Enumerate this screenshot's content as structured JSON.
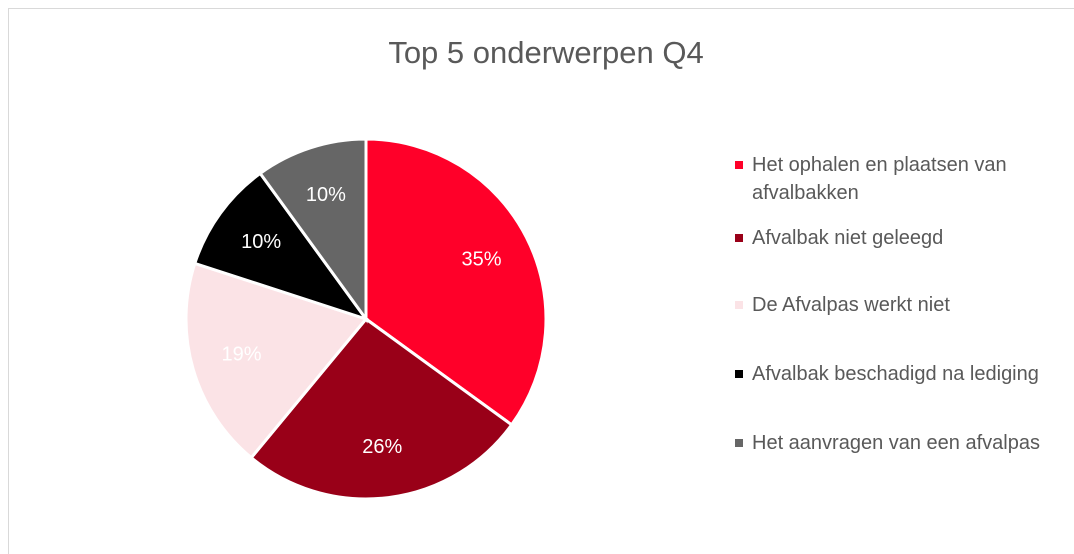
{
  "chart_data": {
    "type": "pie",
    "title": "Top 5 onderwerpen Q4",
    "categories": [
      "Het ophalen en plaatsen van afvalbakken",
      "Afvalbak niet geleegd",
      "De Afvalpas werkt niet",
      "Afvalbak beschadigd na lediging",
      "Het aanvragen van een afvalpas"
    ],
    "values": [
      35,
      26,
      19,
      10,
      10
    ],
    "value_labels": [
      "35%",
      "26%",
      "19%",
      "10%",
      "10%"
    ],
    "colors": [
      "#ff0029",
      "#990018",
      "#fbe3e6",
      "#000000",
      "#666666"
    ],
    "legend": "right"
  }
}
